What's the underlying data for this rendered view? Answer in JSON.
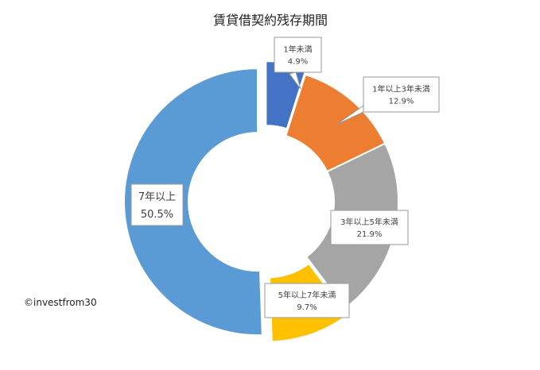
{
  "chart_data": {
    "type": "pie",
    "title": "賃貸借契約残存期間",
    "categories": [
      "1年未満",
      "1年以上3年未満",
      "3年以上5年未満",
      "5年以上7年未満",
      "7年以上"
    ],
    "values": [
      4.9,
      12.9,
      21.9,
      9.7,
      50.5
    ],
    "value_labels": [
      "4.9%",
      "12.9%",
      "21.9%",
      "9.7%",
      "50.5%"
    ],
    "colors": [
      "#4472C4",
      "#ED7D31",
      "#A5A5A5",
      "#FFC000",
      "#5B9BD5"
    ],
    "exploded": [
      true,
      false,
      false,
      true,
      true
    ],
    "donut": true,
    "legend": "none"
  },
  "watermark": "©investfrom30"
}
